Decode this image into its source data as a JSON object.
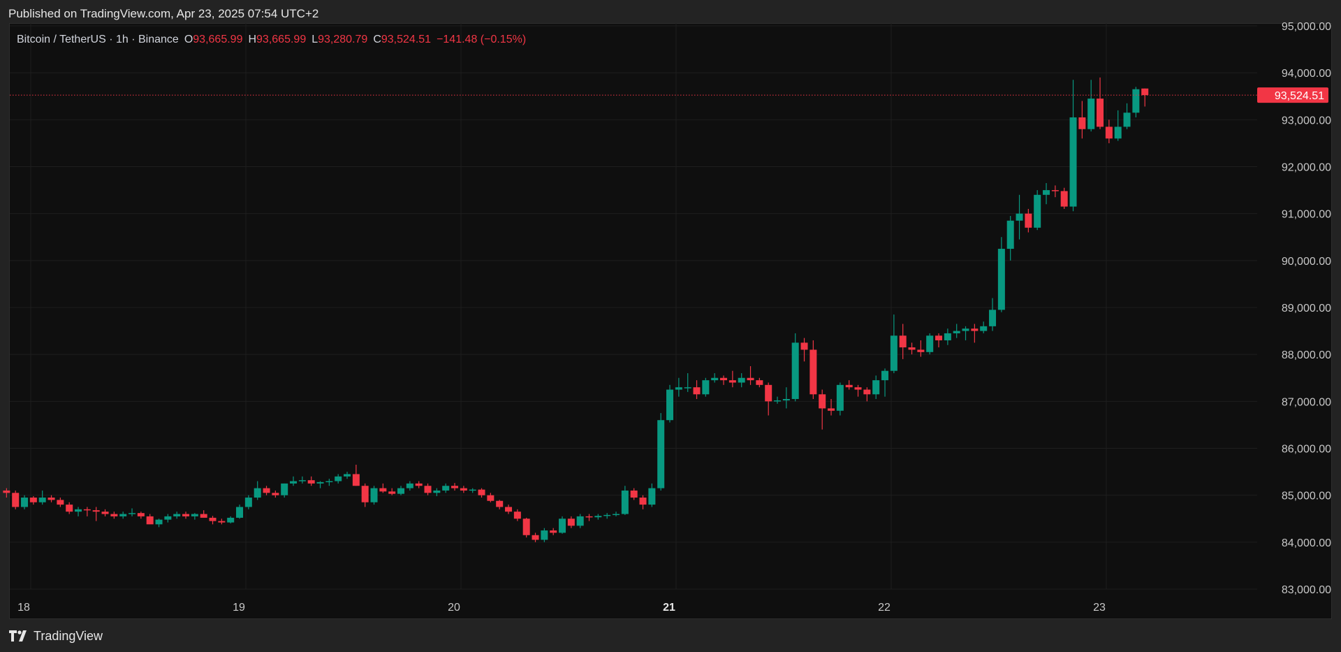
{
  "header": {
    "published": "Published on TradingView.com, Apr 23, 2025 07:54 UTC+2"
  },
  "legend": {
    "symbol": "Bitcoin / TetherUS · 1h · Binance",
    "o_label": "O",
    "o_value": "93,665.99",
    "h_label": "H",
    "h_value": "93,665.99",
    "l_label": "L",
    "l_value": "93,280.79",
    "c_label": "C",
    "c_value": "93,524.51",
    "change": "−141.48 (−0.15%)"
  },
  "footer": {
    "brand": "TradingView"
  },
  "colors": {
    "up": "#089981",
    "down": "#f23645",
    "background": "#0f0f0f",
    "grid": "#1f1f1f"
  },
  "chart_data": {
    "type": "candlestick",
    "interval": "1h",
    "ylim": [
      83000,
      95000
    ],
    "y_ticks": [
      "95,000.00",
      "94,000.00",
      "93,000.00",
      "92,000.00",
      "91,000.00",
      "90,000.00",
      "89,000.00",
      "88,000.00",
      "87,000.00",
      "86,000.00",
      "85,000.00",
      "84,000.00",
      "83,000.00"
    ],
    "y_tick_values": [
      95000,
      94000,
      93000,
      92000,
      91000,
      90000,
      89000,
      88000,
      87000,
      86000,
      85000,
      84000,
      83000
    ],
    "x_ticks": [
      {
        "label": "18",
        "day": 18,
        "bold": false
      },
      {
        "label": "19",
        "day": 19,
        "bold": false
      },
      {
        "label": "20",
        "day": 20,
        "bold": false
      },
      {
        "label": "21",
        "day": 21,
        "bold": true
      },
      {
        "label": "22",
        "day": 22,
        "bold": false
      },
      {
        "label": "23",
        "day": 23,
        "bold": false
      }
    ],
    "first_day": 17.92,
    "last_price": 93524.51,
    "last_price_label": "93,524.51",
    "candles": [
      [
        85100,
        85150,
        84950,
        85050
      ],
      [
        85050,
        85100,
        84700,
        84750
      ],
      [
        84750,
        85000,
        84700,
        84950
      ],
      [
        84950,
        84980,
        84800,
        84850
      ],
      [
        84850,
        85100,
        84800,
        84950
      ],
      [
        84950,
        85000,
        84850,
        84900
      ],
      [
        84900,
        84950,
        84750,
        84800
      ],
      [
        84800,
        84850,
        84600,
        84650
      ],
      [
        84650,
        84750,
        84550,
        84700
      ],
      [
        84700,
        84750,
        84550,
        84680
      ],
      [
        84680,
        84750,
        84450,
        84650
      ],
      [
        84650,
        84700,
        84550,
        84600
      ],
      [
        84600,
        84650,
        84500,
        84550
      ],
      [
        84550,
        84650,
        84500,
        84600
      ],
      [
        84600,
        84720,
        84550,
        84620
      ],
      [
        84620,
        84650,
        84500,
        84550
      ],
      [
        84550,
        84600,
        84420,
        84380
      ],
      [
        84380,
        84500,
        84320,
        84480
      ],
      [
        84480,
        84600,
        84420,
        84550
      ],
      [
        84550,
        84650,
        84500,
        84600
      ],
      [
        84600,
        84650,
        84500,
        84550
      ],
      [
        84550,
        84620,
        84480,
        84600
      ],
      [
        84600,
        84680,
        84550,
        84520
      ],
      [
        84520,
        84560,
        84380,
        84450
      ],
      [
        84450,
        84500,
        84380,
        84420
      ],
      [
        84420,
        84550,
        84400,
        84520
      ],
      [
        84520,
        84800,
        84500,
        84750
      ],
      [
        84750,
        85000,
        84700,
        84950
      ],
      [
        84950,
        85300,
        84900,
        85150
      ],
      [
        85150,
        85200,
        85000,
        85050
      ],
      [
        85050,
        85100,
        84950,
        85000
      ],
      [
        85000,
        85250,
        84950,
        85250
      ],
      [
        85250,
        85400,
        85200,
        85300
      ],
      [
        85300,
        85400,
        85250,
        85320
      ],
      [
        85320,
        85400,
        85200,
        85250
      ],
      [
        85250,
        85300,
        85150,
        85280
      ],
      [
        85280,
        85350,
        85200,
        85300
      ],
      [
        85300,
        85450,
        85250,
        85400
      ],
      [
        85400,
        85500,
        85350,
        85450
      ],
      [
        85450,
        85650,
        85200,
        85200
      ],
      [
        85200,
        85250,
        84750,
        84850
      ],
      [
        84850,
        85200,
        84800,
        85150
      ],
      [
        85150,
        85250,
        85050,
        85080
      ],
      [
        85080,
        85150,
        85000,
        85030
      ],
      [
        85030,
        85200,
        85000,
        85150
      ],
      [
        85150,
        85300,
        85100,
        85250
      ],
      [
        85250,
        85300,
        85150,
        85200
      ],
      [
        85200,
        85250,
        85000,
        85050
      ],
      [
        85050,
        85150,
        84980,
        85100
      ],
      [
        85100,
        85250,
        85050,
        85200
      ],
      [
        85200,
        85260,
        85100,
        85150
      ],
      [
        85150,
        85200,
        85050,
        85100
      ],
      [
        85100,
        85150,
        85050,
        85120
      ],
      [
        85120,
        85150,
        84950,
        85000
      ],
      [
        85000,
        85050,
        84850,
        84880
      ],
      [
        84880,
        84900,
        84700,
        84750
      ],
      [
        84750,
        84800,
        84600,
        84650
      ],
      [
        84650,
        84700,
        84450,
        84500
      ],
      [
        84500,
        84520,
        84100,
        84150
      ],
      [
        84150,
        84200,
        84000,
        84050
      ],
      [
        84050,
        84300,
        84000,
        84250
      ],
      [
        84250,
        84300,
        84150,
        84200
      ],
      [
        84200,
        84550,
        84180,
        84500
      ],
      [
        84500,
        84550,
        84300,
        84350
      ],
      [
        84350,
        84600,
        84300,
        84550
      ],
      [
        84550,
        84600,
        84450,
        84530
      ],
      [
        84530,
        84600,
        84480,
        84560
      ],
      [
        84560,
        84620,
        84500,
        84580
      ],
      [
        84580,
        84650,
        84550,
        84600
      ],
      [
        84600,
        85200,
        84580,
        85100
      ],
      [
        85100,
        85150,
        84900,
        84950
      ],
      [
        84950,
        85000,
        84700,
        84800
      ],
      [
        84800,
        85250,
        84750,
        85150
      ],
      [
        85150,
        86750,
        85100,
        86600
      ],
      [
        86600,
        87350,
        86550,
        87250
      ],
      [
        87250,
        87500,
        87100,
        87300
      ],
      [
        87300,
        87600,
        87200,
        87300
      ],
      [
        87300,
        87450,
        87050,
        87150
      ],
      [
        87150,
        87500,
        87100,
        87450
      ],
      [
        87450,
        87600,
        87400,
        87500
      ],
      [
        87500,
        87550,
        87350,
        87450
      ],
      [
        87450,
        87650,
        87300,
        87400
      ],
      [
        87400,
        87600,
        87300,
        87500
      ],
      [
        87500,
        87750,
        87350,
        87450
      ],
      [
        87450,
        87500,
        87300,
        87350
      ],
      [
        87350,
        87400,
        86700,
        87000
      ],
      [
        87000,
        87100,
        86950,
        87020
      ],
      [
        87020,
        87300,
        86850,
        87050
      ],
      [
        87050,
        88450,
        87000,
        88250
      ],
      [
        88250,
        88350,
        87850,
        88100
      ],
      [
        88100,
        88300,
        87050,
        87150
      ],
      [
        87150,
        87250,
        86400,
        86850
      ],
      [
        86850,
        87050,
        86700,
        86800
      ],
      [
        86800,
        87400,
        86700,
        87350
      ],
      [
        87350,
        87450,
        87250,
        87300
      ],
      [
        87300,
        87350,
        87100,
        87250
      ],
      [
        87250,
        87300,
        87000,
        87150
      ],
      [
        87150,
        87550,
        87050,
        87450
      ],
      [
        87450,
        87700,
        87100,
        87650
      ],
      [
        87650,
        88850,
        87600,
        88400
      ],
      [
        88400,
        88650,
        87900,
        88150
      ],
      [
        88150,
        88250,
        88000,
        88100
      ],
      [
        88100,
        88300,
        87950,
        88050
      ],
      [
        88050,
        88450,
        88000,
        88400
      ],
      [
        88400,
        88450,
        88150,
        88300
      ],
      [
        88300,
        88550,
        88200,
        88450
      ],
      [
        88450,
        88650,
        88350,
        88500
      ],
      [
        88500,
        88600,
        88300,
        88550
      ],
      [
        88550,
        88650,
        88250,
        88500
      ],
      [
        88500,
        88700,
        88450,
        88600
      ],
      [
        88600,
        89200,
        88500,
        88950
      ],
      [
        88950,
        90500,
        88900,
        90250
      ],
      [
        90250,
        90950,
        90000,
        90850
      ],
      [
        90850,
        91400,
        90450,
        91000
      ],
      [
        91000,
        91100,
        90600,
        90700
      ],
      [
        90700,
        91500,
        90650,
        91400
      ],
      [
        91400,
        91650,
        91200,
        91500
      ],
      [
        91500,
        91600,
        91350,
        91480
      ],
      [
        91480,
        91550,
        91100,
        91150
      ],
      [
        91150,
        93850,
        91050,
        93050
      ],
      [
        93050,
        93400,
        92600,
        92800
      ],
      [
        92800,
        93850,
        92750,
        93450
      ],
      [
        93450,
        93900,
        92800,
        92850
      ],
      [
        92850,
        93000,
        92500,
        92600
      ],
      [
        92600,
        93200,
        92550,
        92850
      ],
      [
        92850,
        93350,
        92800,
        93150
      ],
      [
        93150,
        93700,
        93050,
        93650
      ],
      [
        93665,
        93666,
        93281,
        93524
      ]
    ]
  }
}
